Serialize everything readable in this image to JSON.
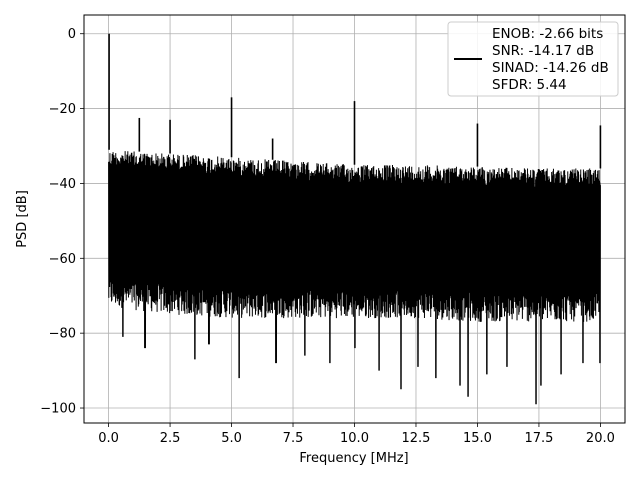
{
  "chart_data": {
    "type": "line",
    "title": "",
    "xlabel": "Frequency [MHz]",
    "ylabel": "PSD [dB]",
    "xlim": [
      -1.0,
      21.0
    ],
    "ylim": [
      -104,
      5
    ],
    "xticks": [
      0.0,
      2.5,
      5.0,
      7.5,
      10.0,
      12.5,
      15.0,
      17.5,
      20.0
    ],
    "xtick_labels": [
      "0.0",
      "2.5",
      "5.0",
      "7.5",
      "10.0",
      "12.5",
      "15.0",
      "17.5",
      "20.0"
    ],
    "yticks": [
      0,
      -20,
      -40,
      -60,
      -80,
      -100
    ],
    "ytick_labels": [
      "0",
      "−20",
      "−40",
      "−60",
      "−80",
      "−100"
    ],
    "grid": true,
    "legend_placement": "top-right",
    "line_color": "#000000",
    "series": [
      {
        "name": "ENOB: -2.66 bits",
        "legend_lines": [
          "ENOB: -2.66 bits",
          "SNR: -14.17 dB",
          "SINAD: -14.26 dB",
          "SFDR: 5.44"
        ],
        "noise_floor_envelope": {
          "x": [
            0.0,
            2.5,
            5.0,
            7.5,
            10.0,
            12.5,
            15.0,
            17.5,
            20.0
          ],
          "upper": [
            -31,
            -32,
            -33,
            -34,
            -35,
            -35,
            -35.5,
            -36,
            -36
          ],
          "lower": [
            -73,
            -75,
            -76,
            -76,
            -76,
            -76,
            -77,
            -77,
            -77
          ]
        },
        "noise_min_dips": [
          {
            "x": 0.6,
            "y": -81
          },
          {
            "x": 1.5,
            "y": -84
          },
          {
            "x": 3.5,
            "y": -87
          },
          {
            "x": 4.1,
            "y": -83
          },
          {
            "x": 5.3,
            "y": -92
          },
          {
            "x": 6.8,
            "y": -88
          },
          {
            "x": 8.0,
            "y": -86
          },
          {
            "x": 9.0,
            "y": -88
          },
          {
            "x": 10.0,
            "y": -84
          },
          {
            "x": 11.0,
            "y": -90
          },
          {
            "x": 11.9,
            "y": -95
          },
          {
            "x": 12.6,
            "y": -89
          },
          {
            "x": 13.3,
            "y": -92
          },
          {
            "x": 14.3,
            "y": -94
          },
          {
            "x": 14.6,
            "y": -97
          },
          {
            "x": 15.4,
            "y": -91
          },
          {
            "x": 16.2,
            "y": -89
          },
          {
            "x": 17.4,
            "y": -99
          },
          {
            "x": 17.6,
            "y": -94
          },
          {
            "x": 18.4,
            "y": -91
          },
          {
            "x": 19.3,
            "y": -88
          },
          {
            "x": 20.0,
            "y": -88
          }
        ],
        "spurs": [
          {
            "x": 0.02,
            "y": 0
          },
          {
            "x": 1.25,
            "y": -22.5
          },
          {
            "x": 2.5,
            "y": -23
          },
          {
            "x": 5.0,
            "y": -17
          },
          {
            "x": 6.67,
            "y": -28
          },
          {
            "x": 10.0,
            "y": -18
          },
          {
            "x": 15.0,
            "y": -24
          },
          {
            "x": 20.0,
            "y": -24.5
          }
        ]
      }
    ]
  }
}
